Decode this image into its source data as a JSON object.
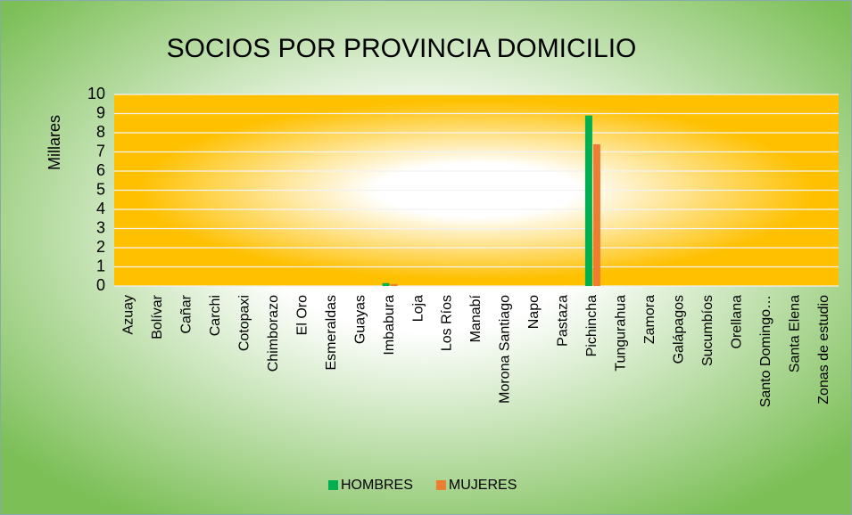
{
  "chart_data": {
    "type": "bar",
    "title": "SOCIOS POR PROVINCIA DOMICILIO",
    "y_label": "Millares",
    "categories": [
      "Azuay",
      "Bolívar",
      "Cañar",
      "Carchi",
      "Cotopaxi",
      "Chimborazo",
      "El Oro",
      "Esmeraldas",
      "Guayas",
      "Imbabura",
      "Loja",
      "Los Ríos",
      "Manabí",
      "Morona Santiago",
      "Napo",
      "Pastaza",
      "Pichincha",
      "Tungurahua",
      "Zamora",
      "Galápagos",
      "Sucumbíos",
      "Orellana",
      "Santo Domingo…",
      "Santa Elena",
      "Zonas de estudio"
    ],
    "series": [
      {
        "name": "HOMBRES",
        "color": "#00b050",
        "values": [
          0,
          0,
          0,
          0,
          0,
          0,
          0,
          0,
          0,
          0.15,
          0,
          0,
          0,
          0,
          0,
          0,
          8.9,
          0,
          0,
          0,
          0,
          0,
          0,
          0,
          0
        ]
      },
      {
        "name": "MUJERES",
        "color": "#ed7d31",
        "values": [
          0,
          0,
          0,
          0,
          0,
          0,
          0,
          0,
          0,
          0.1,
          0,
          0,
          0,
          0,
          0,
          0,
          7.4,
          0,
          0,
          0,
          0,
          0,
          0,
          0,
          0
        ]
      }
    ],
    "ylim": [
      0,
      10
    ],
    "yticks": [
      0,
      1,
      2,
      3,
      4,
      5,
      6,
      7,
      8,
      9,
      10
    ],
    "grid": true,
    "legend": "bottom"
  }
}
